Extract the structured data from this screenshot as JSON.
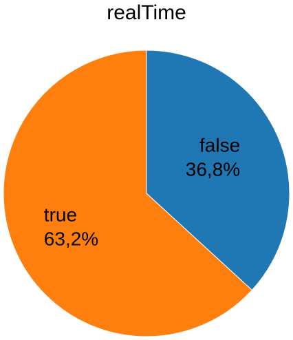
{
  "chart_data": {
    "type": "pie",
    "title": "realTime",
    "slices": [
      {
        "label": "false",
        "value": 36.8,
        "percent_label": "36,8%",
        "color": "#1f77b4"
      },
      {
        "label": "true",
        "value": 63.2,
        "percent_label": "63,2%",
        "color": "#ff7f0e"
      }
    ],
    "start_angle": "12 o'clock",
    "direction": "clockwise",
    "legend": "none"
  }
}
